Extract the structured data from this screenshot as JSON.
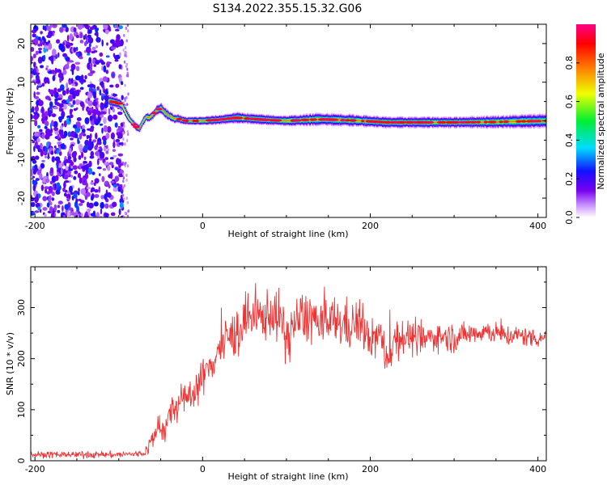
{
  "figure": {
    "title": "S134.2022.355.15.32.G06"
  },
  "chart_data": [
    {
      "type": "heatmap",
      "xlabel": "Height of straight line (km)",
      "ylabel": "Frequency (Hz)",
      "xlim": [
        -205,
        410
      ],
      "ylim": [
        -25,
        25
      ],
      "xticks": [
        -200,
        0,
        200,
        400
      ],
      "yticks": [
        -20,
        -10,
        0,
        10,
        20
      ],
      "colorbar": {
        "label": "Normalized spectral amplitude",
        "range": [
          0,
          1
        ],
        "ticks": [
          "0.0",
          "0.2",
          "0.4",
          "0.6",
          "0.8"
        ],
        "colormap": "rainbow (white-violet-blue-cyan-green-yellow-orange-red-magenta)"
      },
      "noise_region": {
        "x_range": [
          -205,
          -95
        ],
        "y_range": [
          -25,
          25
        ],
        "scattered_x": [
          -95,
          -88
        ],
        "typical_amplitude": 0.3
      },
      "frequency_track": {
        "x": [
          -112,
          -105,
          -100,
          -96,
          -92,
          -88,
          -84,
          -80,
          -76,
          -72,
          -68,
          -64,
          -60,
          -55,
          -50,
          -46,
          -42,
          -38,
          -34,
          -30,
          -25,
          -20,
          0,
          20,
          40,
          60,
          80,
          100,
          140,
          180,
          220,
          300,
          350,
          410
        ],
        "y": [
          5.2,
          4.8,
          4.5,
          3.8,
          2.0,
          0.5,
          -0.5,
          -1.5,
          -2.0,
          -0.3,
          1.0,
          0.8,
          1.5,
          2.8,
          3.2,
          2.2,
          1.5,
          1.0,
          0.5,
          0.6,
          0.2,
          0.0,
          0.0,
          0.3,
          0.8,
          0.5,
          0.2,
          0.0,
          0.4,
          0.1,
          -0.4,
          -0.4,
          -0.3,
          0.0
        ],
        "amplitude": [
          0.8,
          0.9,
          0.85,
          0.7,
          0.75,
          0.7,
          0.8,
          0.85,
          0.8,
          0.75,
          0.8,
          0.85,
          0.8,
          0.85,
          0.9,
          0.85,
          0.85,
          0.8,
          0.85,
          0.85,
          0.9,
          0.95,
          0.95,
          0.9,
          0.95,
          0.9,
          0.95,
          0.9,
          0.95,
          0.9,
          0.85,
          0.85,
          0.85,
          0.85
        ],
        "spread_hz": [
          1.2,
          1.5,
          1.3,
          1.2,
          1.2,
          1.0,
          1.0,
          1.0,
          1.0,
          1.0,
          1.1,
          1.1,
          1.1,
          1.2,
          1.3,
          1.3,
          1.2,
          1.1,
          1.1,
          1.1,
          1.0,
          1.0,
          1.1,
          1.2,
          1.4,
          1.3,
          1.3,
          1.3,
          1.6,
          1.5,
          1.4,
          1.4,
          1.6,
          1.8
        ]
      }
    },
    {
      "type": "line",
      "xlabel": "Height of straight line (km)",
      "ylabel": "SNR (10 * v/v)",
      "xlim": [
        -205,
        410
      ],
      "ylim": [
        0,
        380
      ],
      "xticks": [
        -200,
        0,
        200,
        400
      ],
      "yticks": [
        0,
        100,
        200,
        300
      ],
      "series": [
        {
          "color": "#ee3333",
          "x": [
            -205,
            -150,
            -100,
            -70,
            -60,
            -55,
            -50,
            -45,
            -40,
            -35,
            -30,
            -25,
            -20,
            -10,
            0,
            10,
            20,
            30,
            40,
            50,
            60,
            70,
            80,
            90,
            100,
            110,
            120,
            130,
            140,
            150,
            160,
            170,
            180,
            190,
            200,
            210,
            220,
            230,
            240,
            250,
            260,
            280,
            300,
            320,
            340,
            360,
            380,
            400,
            410
          ],
          "y": [
            12,
            12,
            12,
            14,
            40,
            60,
            75,
            55,
            85,
            100,
            110,
            115,
            120,
            140,
            160,
            190,
            220,
            240,
            250,
            270,
            280,
            280,
            290,
            285,
            240,
            270,
            280,
            285,
            260,
            270,
            275,
            265,
            270,
            265,
            230,
            250,
            200,
            240,
            245,
            240,
            235,
            245,
            240,
            250,
            255,
            245,
            245,
            240,
            245
          ],
          "amplitude": [
            6,
            6,
            6,
            6,
            20,
            25,
            30,
            25,
            30,
            30,
            30,
            30,
            30,
            30,
            35,
            35,
            40,
            40,
            45,
            45,
            45,
            45,
            45,
            45,
            50,
            45,
            50,
            50,
            45,
            45,
            45,
            45,
            45,
            40,
            35,
            40,
            35,
            40,
            35,
            30,
            30,
            25,
            25,
            20,
            20,
            20,
            18,
            18,
            18
          ]
        }
      ]
    }
  ]
}
